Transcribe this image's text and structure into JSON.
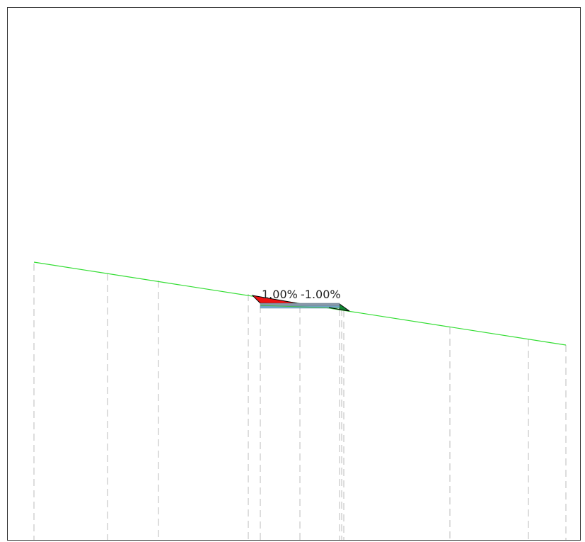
{
  "drawing": {
    "slope_left": "1.00%",
    "slope_right": "-1.00%"
  },
  "colors": {
    "frame": "#333333",
    "ground_line": "#33dd33",
    "station_lines": "#bbbbbb",
    "cut_fill": "#ee1111",
    "fill_fill": "#118833",
    "pavement_top": "#8899aa",
    "pavement_base": "#77aacc",
    "subgrade_line": "#44bb44"
  }
}
